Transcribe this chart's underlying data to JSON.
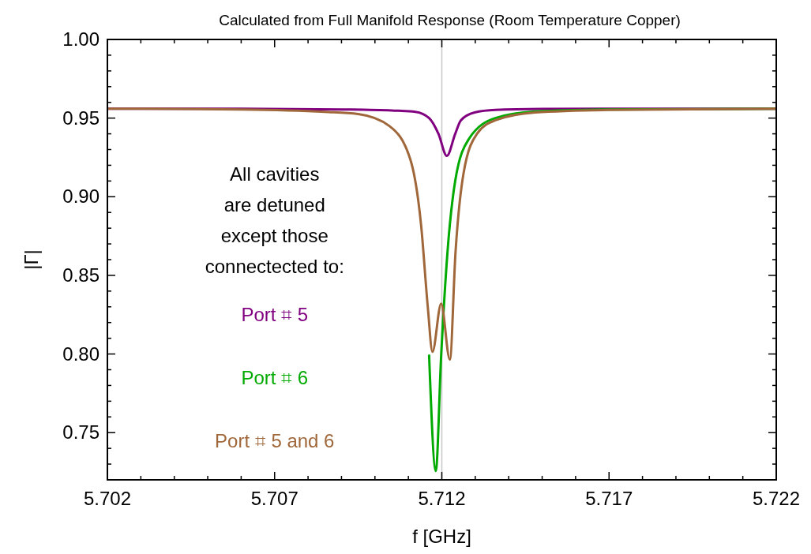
{
  "chart_data": {
    "type": "line",
    "title": "Calculated from Full Manifold Response (Room Temperature Copper)",
    "xlabel": "f [GHz]",
    "ylabel": "|Γ|",
    "xlim": [
      5.702,
      5.722
    ],
    "ylim": [
      0.72,
      1.0
    ],
    "xticks": [
      5.702,
      {
        "value": 5.703,
        "label": null
      },
      {
        "value": 5.704,
        "label": null
      },
      {
        "value": 5.705,
        "label": null
      },
      {
        "value": 5.706,
        "label": null
      },
      5.707,
      {
        "value": 5.708,
        "label": null
      },
      {
        "value": 5.709,
        "label": null
      },
      {
        "value": 5.71,
        "label": null
      },
      {
        "value": 5.711,
        "label": null
      },
      5.712,
      {
        "value": 5.713,
        "label": null
      },
      {
        "value": 5.714,
        "label": null
      },
      {
        "value": 5.715,
        "label": null
      },
      {
        "value": 5.716,
        "label": null
      },
      5.717,
      {
        "value": 5.718,
        "label": null
      },
      {
        "value": 5.719,
        "label": null
      },
      {
        "value": 5.72,
        "label": null
      },
      {
        "value": 5.721,
        "label": null
      },
      5.722
    ],
    "yticks": [
      {
        "value": 0.72,
        "label": null
      },
      {
        "value": 0.73,
        "label": null
      },
      {
        "value": 0.74,
        "label": null
      },
      {
        "value": 0.75,
        "label": "0.75"
      },
      {
        "value": 0.76,
        "label": null
      },
      {
        "value": 0.77,
        "label": null
      },
      {
        "value": 0.78,
        "label": null
      },
      {
        "value": 0.79,
        "label": null
      },
      {
        "value": 0.8,
        "label": "0.80"
      },
      {
        "value": 0.81,
        "label": null
      },
      {
        "value": 0.82,
        "label": null
      },
      {
        "value": 0.83,
        "label": null
      },
      {
        "value": 0.84,
        "label": null
      },
      {
        "value": 0.85,
        "label": "0.85"
      },
      {
        "value": 0.86,
        "label": null
      },
      {
        "value": 0.87,
        "label": null
      },
      {
        "value": 0.88,
        "label": null
      },
      {
        "value": 0.89,
        "label": null
      },
      {
        "value": 0.9,
        "label": "0.90"
      },
      {
        "value": 0.91,
        "label": null
      },
      {
        "value": 0.92,
        "label": null
      },
      {
        "value": 0.93,
        "label": null
      },
      {
        "value": 0.94,
        "label": null
      },
      {
        "value": 0.95,
        "label": "0.95"
      },
      {
        "value": 0.96,
        "label": null
      },
      {
        "value": 0.97,
        "label": null
      },
      {
        "value": 0.98,
        "label": null
      },
      {
        "value": 0.99,
        "label": null
      },
      {
        "value": 1.0,
        "label": "1.00"
      }
    ],
    "grid": false,
    "legend": false,
    "line_style": "solid",
    "ref_lines": [
      {
        "axis": "x",
        "value": 5.712,
        "label": null,
        "color": "#c8c8c8"
      }
    ],
    "annotations": [
      "All cavities\nare detuned\nexcept those\nconnectected to:"
    ],
    "series": [
      {
        "name": "Port ⌗ 5",
        "color": "#800080",
        "x": [
          5.702,
          5.706,
          5.709,
          5.7105,
          5.71121,
          5.71162,
          5.7119,
          5.71215,
          5.7124,
          5.71257,
          5.71298,
          5.7136,
          5.715,
          5.718,
          5.722
        ],
        "values": [
          0.956,
          0.956,
          0.9555,
          0.9548,
          0.954,
          0.95,
          0.94,
          0.926,
          0.94,
          0.9486,
          0.9536,
          0.9552,
          0.9558,
          0.956,
          0.956
        ]
      },
      {
        "name": "Port ⌗ 6",
        "color": "#00aa00",
        "x": [
          5.71162,
          5.71182,
          5.71198,
          5.71217,
          5.7124,
          5.71281,
          5.7136,
          5.71479,
          5.717,
          5.722
        ],
        "values": [
          0.799,
          0.7256,
          0.799,
          0.865,
          0.91,
          0.9368,
          0.95,
          0.9542,
          0.9555,
          0.956
        ]
      },
      {
        "name": "Port ⌗ 5 and 6",
        "color": "#a0673a",
        "x": [
          5.702,
          5.706,
          5.7085,
          5.7095,
          5.71043,
          5.71106,
          5.71138,
          5.71158,
          5.71172,
          5.71198,
          5.71224,
          5.71241,
          5.71265,
          5.71305,
          5.7136,
          5.71479,
          5.717,
          5.722
        ],
        "values": [
          0.956,
          0.9555,
          0.954,
          0.9526,
          0.945,
          0.9236,
          0.882,
          0.83,
          0.8014,
          0.832,
          0.7964,
          0.865,
          0.915,
          0.94,
          0.9486,
          0.9536,
          0.9552,
          0.956
        ]
      }
    ]
  }
}
